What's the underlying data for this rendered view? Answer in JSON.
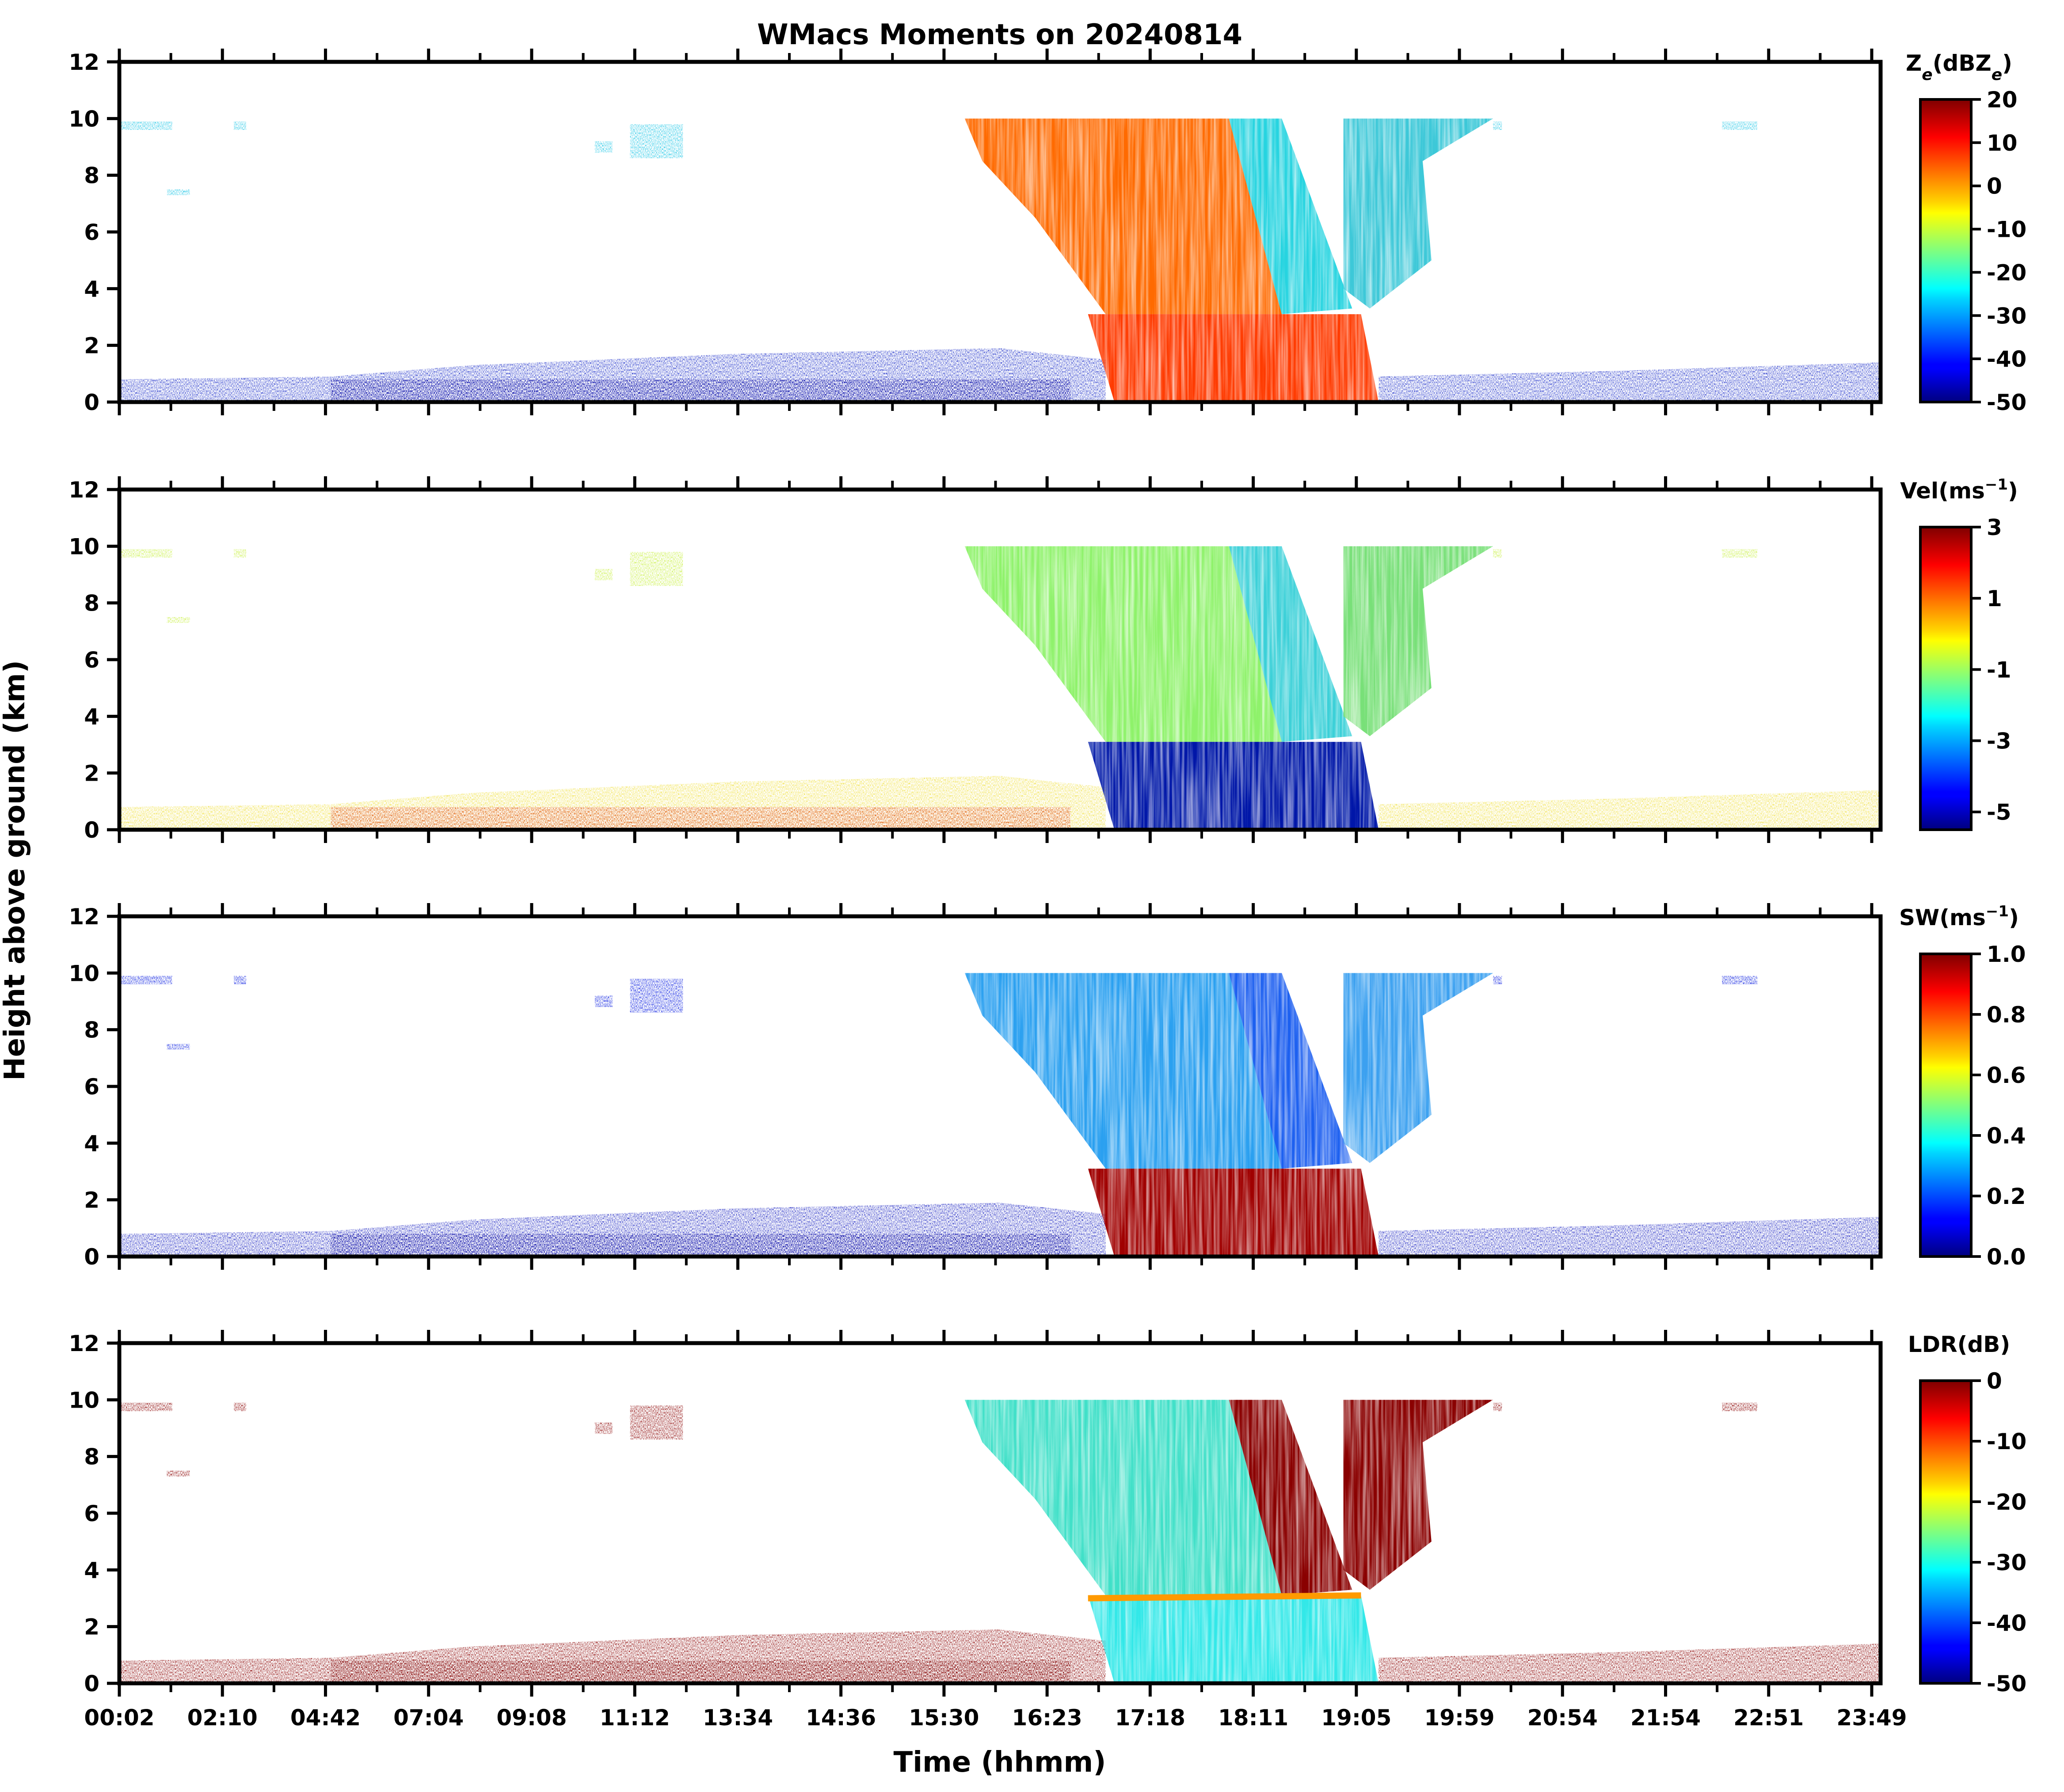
{
  "chart_data": {
    "type": "heatmap",
    "title": "WMacs Moments on 20240814",
    "xlabel": "Time (hhmm)",
    "ylabel": "Height above ground (km)",
    "x_tick_labels": [
      "00:02",
      "02:10",
      "04:42",
      "07:04",
      "09:08",
      "11:12",
      "13:34",
      "14:36",
      "15:30",
      "16:23",
      "17:18",
      "18:11",
      "19:05",
      "19:59",
      "20:54",
      "21:54",
      "22:51",
      "23:49"
    ],
    "y_ticks": [
      0,
      2,
      4,
      6,
      8,
      10,
      12
    ],
    "ylim": [
      0,
      12
    ],
    "colormap": "jet",
    "panels": [
      {
        "name": "reflectivity",
        "colorbar_label": "Ze(dBZe)",
        "label_main": "Z",
        "label_sub": "e",
        "label_mid": "(dBZ",
        "label_sub2": "e",
        "label_end": ")",
        "vmin": -50,
        "vmax": 20,
        "ticks": [
          "20",
          "10",
          "0",
          "-10",
          "-20",
          "-30",
          "-40",
          "-50"
        ],
        "tick_values": [
          20,
          10,
          0,
          -10,
          -20,
          -30,
          -40,
          -50
        ]
      },
      {
        "name": "velocity",
        "colorbar_label": "Vel(ms-1)",
        "label_main": "Vel(ms",
        "label_sup": "−1",
        "label_end": ")",
        "vmin": -5.5,
        "vmax": 3,
        "ticks": [
          "3",
          "1",
          "-1",
          "-3",
          "-5"
        ],
        "tick_values": [
          3,
          1,
          -1,
          -3,
          -5
        ]
      },
      {
        "name": "spectrum-width",
        "colorbar_label": "SW(ms-1)",
        "label_main": "SW(ms",
        "label_sup": "−1",
        "label_end": ")",
        "vmin": 0,
        "vmax": 1,
        "ticks": [
          "1.0",
          "0.8",
          "0.6",
          "0.4",
          "0.2",
          "0.0"
        ],
        "tick_values": [
          1.0,
          0.8,
          0.6,
          0.4,
          0.2,
          0.0
        ]
      },
      {
        "name": "ldr",
        "colorbar_label": "LDR(dB)",
        "label_main": "LDR(dB)",
        "vmin": -50,
        "vmax": 0,
        "ticks": [
          "0",
          "-10",
          "-20",
          "-30",
          "-40",
          "-50"
        ],
        "tick_values": [
          0,
          -10,
          -20,
          -30,
          -40,
          -50
        ]
      }
    ],
    "notes": "Time-height radar moments; precipitation event approx. 16:30-19:30 with melting layer near 3 km"
  }
}
